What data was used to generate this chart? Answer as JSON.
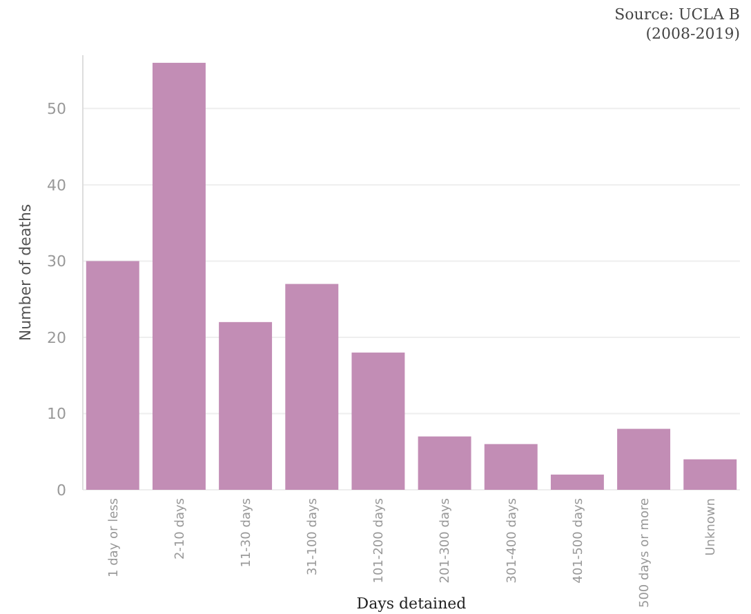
{
  "chart_data": {
    "type": "bar",
    "xlabel": "Days detained",
    "ylabel": "Number of deaths",
    "annotations": [
      "Source: UCLA B\n(2008-2019)"
    ],
    "categories": [
      "1 day or less",
      "2-10 days",
      "11-30 days",
      "31-100 days",
      "101-200 days",
      "201-300 days",
      "301-400 days",
      "401-500 days",
      "500 days or more",
      "Unknown"
    ],
    "values": [
      30,
      56,
      22,
      27,
      18,
      7,
      6,
      2,
      8,
      4
    ],
    "color": "#c28db5",
    "ylim": [
      0,
      57
    ],
    "yticks": [
      0,
      10,
      20,
      30,
      40,
      50
    ],
    "grid": "y"
  }
}
